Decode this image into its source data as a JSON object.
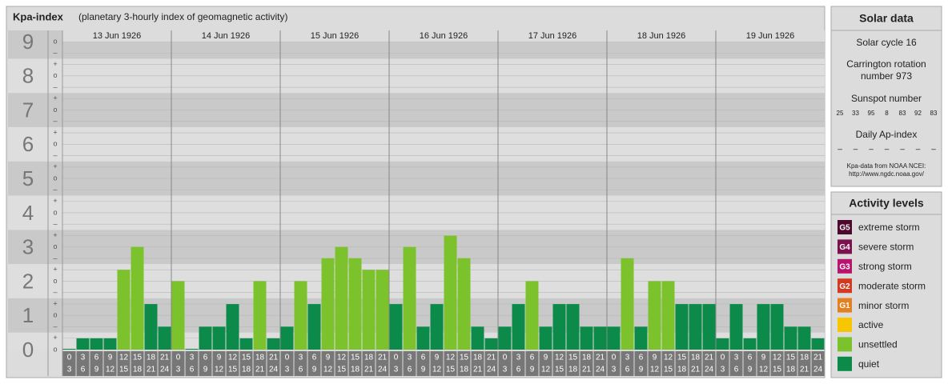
{
  "title": "Kpa-index",
  "subtitle": "(planetary 3-hourly index of geomagnetic activity)",
  "chart_data": {
    "type": "bar",
    "ylim": [
      0,
      9
    ],
    "yticks": [
      0,
      1,
      2,
      3,
      4,
      5,
      6,
      7,
      8,
      9
    ],
    "minor_labels": {
      "minus": "–",
      "zero": "o",
      "plus": "+"
    },
    "hours": [
      "0",
      "3",
      "6",
      "9",
      "12",
      "15",
      "18",
      "21",
      "24"
    ],
    "days": [
      {
        "date": "13 Jun 1926",
        "values": [
          0,
          0.33,
          0.33,
          0.33,
          2.33,
          3,
          1.33,
          0.67
        ],
        "colors": [
          "#0b8a4a",
          "#0b8a4a",
          "#0b8a4a",
          "#0b8a4a",
          "#7cc22c",
          "#7cc22c",
          "#0b8a4a",
          "#0b8a4a"
        ]
      },
      {
        "date": "14 Jun 1926",
        "values": [
          2,
          0,
          0.67,
          0.67,
          1.33,
          0.33,
          2,
          0.33
        ],
        "colors": [
          "#7cc22c",
          "#0b8a4a",
          "#0b8a4a",
          "#0b8a4a",
          "#0b8a4a",
          "#0b8a4a",
          "#7cc22c",
          "#0b8a4a"
        ]
      },
      {
        "date": "15 Jun 1926",
        "values": [
          0.67,
          2,
          1.33,
          2.67,
          3,
          2.67,
          2.33,
          2.33
        ],
        "colors": [
          "#0b8a4a",
          "#7cc22c",
          "#0b8a4a",
          "#7cc22c",
          "#7cc22c",
          "#7cc22c",
          "#7cc22c",
          "#7cc22c"
        ]
      },
      {
        "date": "16 Jun 1926",
        "values": [
          1.33,
          3,
          0.67,
          1.33,
          3.33,
          2.67,
          0.67,
          0.33
        ],
        "colors": [
          "#0b8a4a",
          "#7cc22c",
          "#0b8a4a",
          "#0b8a4a",
          "#7cc22c",
          "#7cc22c",
          "#0b8a4a",
          "#0b8a4a"
        ]
      },
      {
        "date": "17 Jun 1926",
        "values": [
          0.67,
          1.33,
          2,
          0.67,
          1.33,
          1.33,
          0.67,
          0.67
        ],
        "colors": [
          "#0b8a4a",
          "#0b8a4a",
          "#7cc22c",
          "#0b8a4a",
          "#0b8a4a",
          "#0b8a4a",
          "#0b8a4a",
          "#0b8a4a"
        ]
      },
      {
        "date": "18 Jun 1926",
        "values": [
          0.67,
          2.67,
          0.67,
          2,
          2,
          1.33,
          1.33,
          1.33
        ],
        "colors": [
          "#0b8a4a",
          "#7cc22c",
          "#0b8a4a",
          "#7cc22c",
          "#7cc22c",
          "#0b8a4a",
          "#0b8a4a",
          "#0b8a4a"
        ]
      },
      {
        "date": "19 Jun 1926",
        "values": [
          0.33,
          1.33,
          0.33,
          1.33,
          1.33,
          0.67,
          0.67,
          0.33
        ],
        "colors": [
          "#0b8a4a",
          "#0b8a4a",
          "#0b8a4a",
          "#0b8a4a",
          "#0b8a4a",
          "#0b8a4a",
          "#0b8a4a",
          "#0b8a4a"
        ]
      }
    ]
  },
  "solar": {
    "title": "Solar data",
    "cycle": "Solar cycle 16",
    "carrington": [
      "Carrington rotation",
      "number 973"
    ],
    "sunspot_title": "Sunspot number",
    "sunspots": [
      25,
      33,
      95,
      8,
      83,
      92,
      83
    ],
    "ap_title": "Daily Ap-index",
    "ap": [
      "–",
      "–",
      "–",
      "–",
      "–",
      "–",
      "–"
    ],
    "source": [
      "Kpa-data from NOAA NCEI:",
      "http://www.ngdc.noaa.gov/"
    ]
  },
  "levels": {
    "title": "Activity levels",
    "items": [
      {
        "code": "G5",
        "label": "extreme storm",
        "color": "#4d0a2e"
      },
      {
        "code": "G4",
        "label": "severe storm",
        "color": "#7c1150"
      },
      {
        "code": "G3",
        "label": "strong storm",
        "color": "#b8146e"
      },
      {
        "code": "G2",
        "label": "moderate storm",
        "color": "#d33a20"
      },
      {
        "code": "G1",
        "label": "minor storm",
        "color": "#e3801f"
      },
      {
        "label": "active",
        "color": "#f7c600"
      },
      {
        "label": "unsettled",
        "color": "#7cc22c"
      },
      {
        "label": "quiet",
        "color": "#0b8a4a"
      }
    ]
  }
}
